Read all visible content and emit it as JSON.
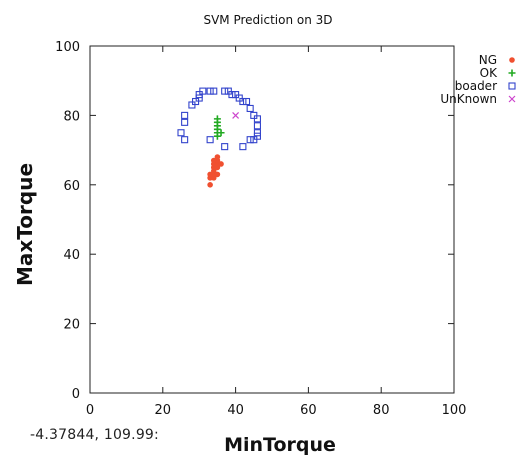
{
  "coord_readout": "-4.37844,  109.99:",
  "chart_data": {
    "type": "scatter",
    "title": "SVM Prediction on 3D",
    "xlabel": "MinTorque",
    "ylabel": "MaxTorque",
    "xlim": [
      0,
      100
    ],
    "ylim": [
      0,
      100
    ],
    "xticks": [
      "0",
      "20",
      "40",
      "60",
      "80",
      "100"
    ],
    "yticks": [
      "0",
      "20",
      "40",
      "60",
      "80",
      "100"
    ],
    "grid": false,
    "legend_position": "right",
    "series": [
      {
        "name": "NG",
        "marker": "dot",
        "color": "#f05030",
        "points": [
          [
            33,
            60
          ],
          [
            33,
            62
          ],
          [
            34,
            62
          ],
          [
            33,
            63
          ],
          [
            34,
            63
          ],
          [
            35,
            63
          ],
          [
            34,
            64
          ],
          [
            34,
            65
          ],
          [
            35,
            65
          ],
          [
            35,
            66
          ],
          [
            34,
            66
          ],
          [
            35,
            67
          ],
          [
            34,
            67
          ],
          [
            36,
            66
          ],
          [
            35,
            68
          ]
        ]
      },
      {
        "name": "OK",
        "marker": "plus",
        "color": "#22aa22",
        "points": [
          [
            35,
            74
          ],
          [
            35,
            75
          ],
          [
            36,
            75
          ],
          [
            35,
            76
          ],
          [
            35,
            77
          ],
          [
            35,
            78
          ],
          [
            35,
            79
          ]
        ]
      },
      {
        "name": "boader",
        "marker": "square",
        "color": "#3344cc",
        "points": [
          [
            25,
            75
          ],
          [
            26,
            73
          ],
          [
            26,
            78
          ],
          [
            26,
            80
          ],
          [
            28,
            83
          ],
          [
            29,
            84
          ],
          [
            30,
            85
          ],
          [
            30,
            86
          ],
          [
            31,
            87
          ],
          [
            33,
            87
          ],
          [
            34,
            87
          ],
          [
            37,
            87
          ],
          [
            38,
            87
          ],
          [
            39,
            86
          ],
          [
            40,
            86
          ],
          [
            41,
            85
          ],
          [
            42,
            84
          ],
          [
            43,
            84
          ],
          [
            44,
            82
          ],
          [
            45,
            80
          ],
          [
            46,
            79
          ],
          [
            46,
            77
          ],
          [
            46,
            75
          ],
          [
            46,
            74
          ],
          [
            45,
            73
          ],
          [
            44,
            73
          ],
          [
            42,
            71
          ],
          [
            37,
            71
          ],
          [
            33,
            73
          ]
        ]
      },
      {
        "name": "UnKnown",
        "marker": "x",
        "color": "#cc44cc",
        "points": [
          [
            40,
            80
          ]
        ]
      }
    ]
  }
}
